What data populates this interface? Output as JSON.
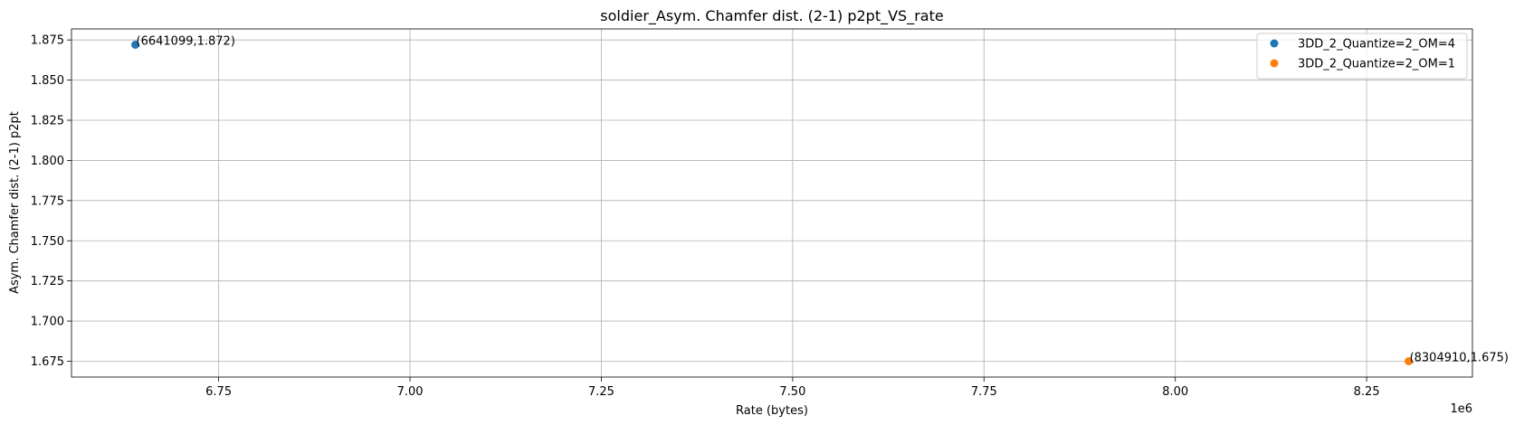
{
  "chart_data": {
    "type": "scatter",
    "title": "soldier_Asym. Chamfer dist. (2-1) p2pt_VS_rate",
    "xlabel": "Rate (bytes)",
    "ylabel": "Asym. Chamfer dist. (2-1) p2pt",
    "x_offset_label": "1e6",
    "xlim": [
      6.5577,
      8.3882
    ],
    "ylim": [
      1.66515,
      1.88185
    ],
    "x_ticks": [
      {
        "value": 6.75,
        "label": "6.75"
      },
      {
        "value": 7.0,
        "label": "7.00"
      },
      {
        "value": 7.25,
        "label": "7.25"
      },
      {
        "value": 7.5,
        "label": "7.50"
      },
      {
        "value": 7.75,
        "label": "7.75"
      },
      {
        "value": 8.0,
        "label": "8.00"
      },
      {
        "value": 8.25,
        "label": "8.25"
      }
    ],
    "y_ticks": [
      {
        "value": 1.675,
        "label": "1.675"
      },
      {
        "value": 1.7,
        "label": "1.700"
      },
      {
        "value": 1.725,
        "label": "1.725"
      },
      {
        "value": 1.75,
        "label": "1.750"
      },
      {
        "value": 1.775,
        "label": "1.775"
      },
      {
        "value": 1.8,
        "label": "1.800"
      },
      {
        "value": 1.825,
        "label": "1.825"
      },
      {
        "value": 1.85,
        "label": "1.850"
      },
      {
        "value": 1.875,
        "label": "1.875"
      }
    ],
    "grid": true,
    "legend_position": "top-right",
    "series": [
      {
        "name": "3DD_2_Quantize=2_OM=4",
        "color": "#1f77b4",
        "points": [
          {
            "x": 6.641099,
            "y": 1.872,
            "label": "(6641099,1.872)"
          }
        ]
      },
      {
        "name": "3DD_2_Quantize=2_OM=1",
        "color": "#ff7f0e",
        "points": [
          {
            "x": 8.30491,
            "y": 1.675,
            "label": "(8304910,1.675)"
          }
        ]
      }
    ]
  }
}
